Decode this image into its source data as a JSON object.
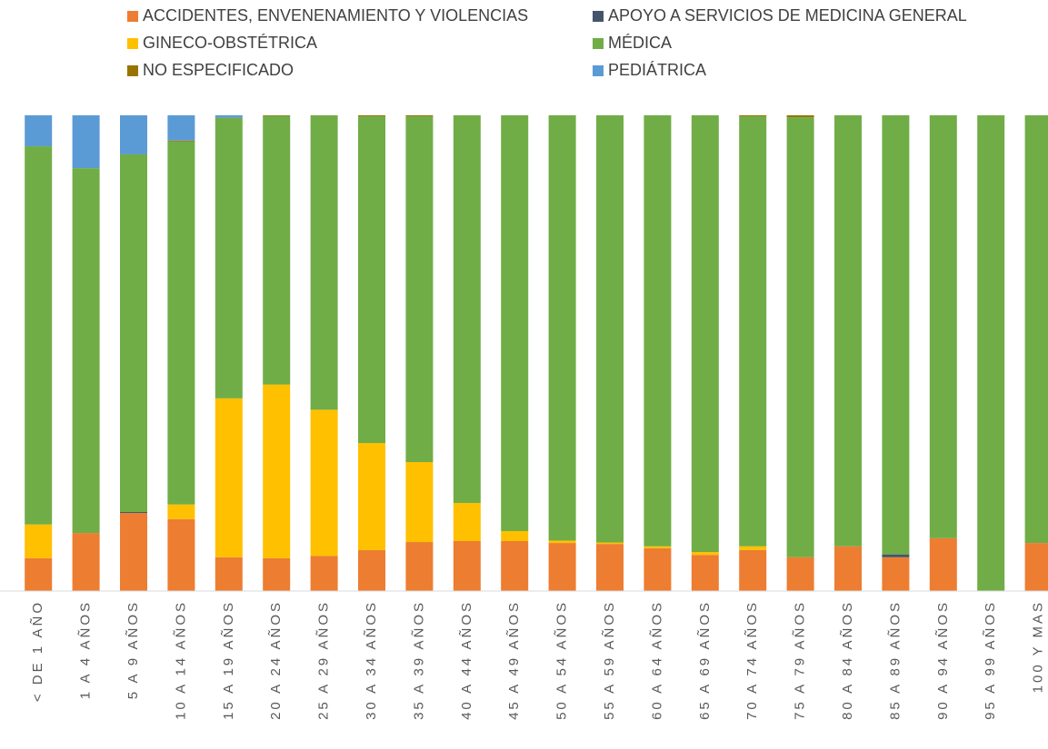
{
  "chart_data": {
    "type": "stacked_bar_100",
    "categories": [
      "< DE 1 AÑO",
      "1 A 4 AÑOS",
      "5 A 9 AÑOS",
      "10 A 14 AÑOS",
      "15 A 19 AÑOS",
      "20 A 24 AÑOS",
      "25 A 29 AÑOS",
      "30 A 34 AÑOS",
      "35 A 39 AÑOS",
      "40 A 44 AÑOS",
      "45 A 49 AÑOS",
      "50 A 54 AÑOS",
      "55 A 59 AÑOS",
      "60 A 64 AÑOS",
      "65 A 69 AÑOS",
      "70 A 74 AÑOS",
      "75 A 79 AÑOS",
      "80 A 84 AÑOS",
      "85 A 89 AÑOS",
      "90 A 94 AÑOS",
      "95 A 99 AÑOS",
      "100 Y MAS"
    ],
    "series": [
      {
        "name": "ACCIDENTES, ENVENENAMIENTO Y VIOLENCIAS",
        "color": "#ed7d31",
        "values": [
          6.9,
          12.2,
          16.4,
          15.1,
          7.1,
          6.9,
          7.4,
          8.6,
          10.3,
          10.5,
          10.5,
          10.1,
          9.9,
          9.0,
          7.6,
          8.6,
          7.1,
          9.4,
          7.1,
          11.1,
          0,
          10.1
        ]
      },
      {
        "name": "APOYO A SERVICIOS DE MEDICINA GENERAL",
        "color": "#44546a",
        "values": [
          0,
          0,
          0.2,
          0,
          0,
          0,
          0,
          0,
          0,
          0,
          0,
          0,
          0,
          0,
          0,
          0,
          0,
          0,
          0.6,
          0,
          0,
          0
        ]
      },
      {
        "name": "GINECO-OBSTÉTRICA",
        "color": "#ffc000",
        "values": [
          7.1,
          0,
          0,
          3.1,
          33.4,
          36.5,
          30.7,
          22.5,
          16.8,
          8.0,
          2.1,
          0.5,
          0.3,
          0.4,
          0.6,
          0.8,
          0,
          0,
          0,
          0,
          0,
          0
        ]
      },
      {
        "name": "MÉDICA",
        "color": "#70ad47",
        "values": [
          79.5,
          76.7,
          75.2,
          76.3,
          59.0,
          56.5,
          61.9,
          68.7,
          72.7,
          81.5,
          87.4,
          89.4,
          89.8,
          90.6,
          91.8,
          90.4,
          92.5,
          90.6,
          92.3,
          88.9,
          100,
          89.9
        ]
      },
      {
        "name": "NO ESPECIFICADO",
        "color": "#997300",
        "values": [
          0,
          0,
          0,
          0.2,
          0,
          0.1,
          0,
          0.2,
          0.2,
          0,
          0,
          0,
          0,
          0,
          0,
          0.2,
          0.4,
          0,
          0,
          0,
          0,
          0
        ]
      },
      {
        "name": "PEDIÁTRICA",
        "color": "#5b9bd5",
        "values": [
          6.5,
          11.1,
          8.2,
          5.3,
          0.5,
          0,
          0,
          0,
          0,
          0,
          0,
          0,
          0,
          0,
          0,
          0,
          0,
          0,
          0,
          0,
          0,
          0
        ]
      }
    ],
    "ylim": [
      0,
      100
    ]
  }
}
